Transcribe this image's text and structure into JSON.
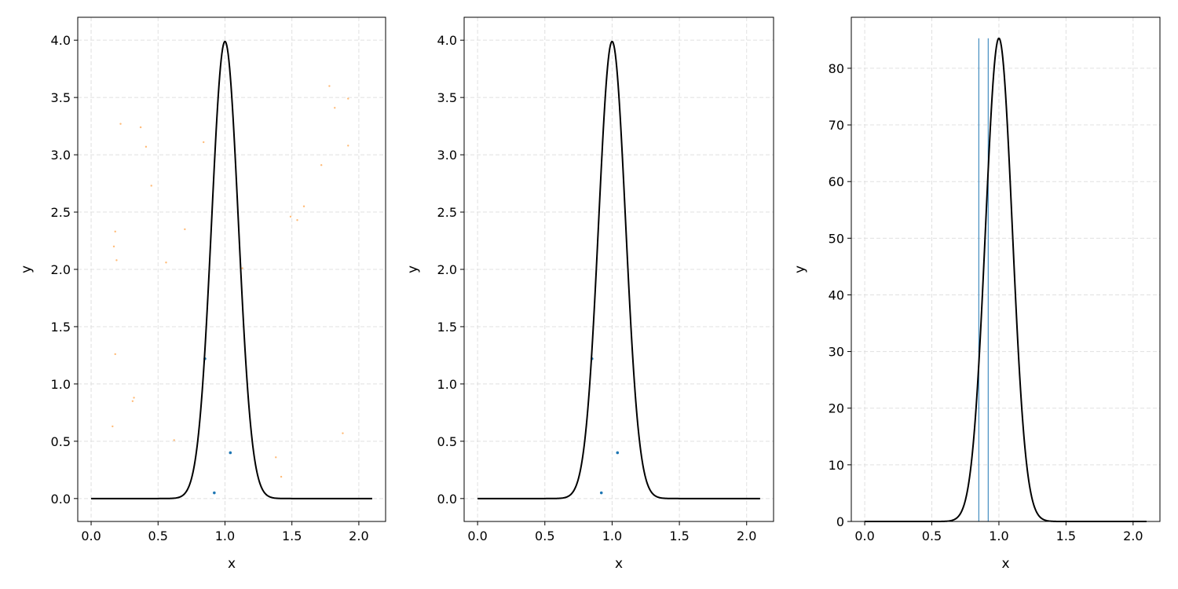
{
  "chart_data": [
    {
      "type": "scatter",
      "xlabel": "x",
      "ylabel": "y",
      "xlim": [
        -0.1,
        2.2
      ],
      "ylim": [
        -0.2,
        4.2
      ],
      "xticks": [
        0.0,
        0.5,
        1.0,
        1.5,
        2.0
      ],
      "xtick_labels": [
        "0.0",
        "0.5",
        "1.0",
        "1.5",
        "2.0"
      ],
      "yticks": [
        0.0,
        0.5,
        1.0,
        1.5,
        2.0,
        2.5,
        3.0,
        3.5,
        4.0
      ],
      "ytick_labels": [
        "0.0",
        "0.5",
        "1.0",
        "1.5",
        "2.0",
        "2.5",
        "3.0",
        "3.5",
        "4.0"
      ],
      "grid": true,
      "curve": {
        "function": "gaussian",
        "mean": 1.0,
        "sigma": 0.1,
        "x_range": [
          0.0,
          2.1
        ],
        "color": "#000000"
      },
      "series": [
        {
          "color": "#1f77b4",
          "points": [
            [
              0.85,
              1.22
            ],
            [
              0.92,
              0.05
            ],
            [
              1.04,
              0.4
            ]
          ]
        },
        {
          "color": "#ffbb78",
          "points": [
            [
              0.22,
              3.27
            ],
            [
              0.37,
              3.24
            ],
            [
              0.41,
              3.07
            ],
            [
              0.45,
              2.73
            ],
            [
              0.84,
              3.11
            ],
            [
              0.18,
              2.33
            ],
            [
              0.17,
              2.2
            ],
            [
              0.19,
              2.08
            ],
            [
              0.56,
              2.06
            ],
            [
              0.7,
              2.35
            ],
            [
              0.18,
              1.26
            ],
            [
              0.32,
              0.88
            ],
            [
              0.31,
              0.85
            ],
            [
              0.16,
              0.63
            ],
            [
              0.62,
              0.51
            ],
            [
              1.13,
              2.01
            ],
            [
              1.38,
              0.36
            ],
            [
              1.42,
              0.19
            ],
            [
              1.49,
              2.46
            ],
            [
              1.54,
              2.43
            ],
            [
              1.59,
              2.55
            ],
            [
              1.72,
              2.91
            ],
            [
              1.78,
              3.6
            ],
            [
              1.82,
              3.41
            ],
            [
              1.92,
              3.49
            ],
            [
              1.92,
              3.08
            ],
            [
              1.88,
              0.57
            ]
          ]
        }
      ]
    },
    {
      "type": "scatter",
      "xlabel": "x",
      "ylabel": "y",
      "xlim": [
        -0.1,
        2.2
      ],
      "ylim": [
        -0.2,
        4.2
      ],
      "xticks": [
        0.0,
        0.5,
        1.0,
        1.5,
        2.0
      ],
      "xtick_labels": [
        "0.0",
        "0.5",
        "1.0",
        "1.5",
        "2.0"
      ],
      "yticks": [
        0.0,
        0.5,
        1.0,
        1.5,
        2.0,
        2.5,
        3.0,
        3.5,
        4.0
      ],
      "ytick_labels": [
        "0.0",
        "0.5",
        "1.0",
        "1.5",
        "2.0",
        "2.5",
        "3.0",
        "3.5",
        "4.0"
      ],
      "grid": true,
      "curve": {
        "function": "gaussian",
        "mean": 1.0,
        "sigma": 0.1,
        "x_range": [
          0.0,
          2.1
        ],
        "color": "#000000"
      },
      "series": [
        {
          "color": "#1f77b4",
          "points": [
            [
              0.85,
              1.22
            ],
            [
              0.92,
              0.05
            ],
            [
              1.04,
              0.4
            ]
          ]
        }
      ]
    },
    {
      "type": "line",
      "xlabel": "x",
      "ylabel": "y",
      "xlim": [
        -0.1,
        2.2
      ],
      "ylim": [
        0,
        89
      ],
      "xticks": [
        0.0,
        0.5,
        1.0,
        1.5,
        2.0
      ],
      "xtick_labels": [
        "0.0",
        "0.5",
        "1.0",
        "1.5",
        "2.0"
      ],
      "yticks": [
        0,
        10,
        20,
        30,
        40,
        50,
        60,
        70,
        80
      ],
      "ytick_labels": [
        "0",
        "10",
        "20",
        "30",
        "40",
        "50",
        "60",
        "70",
        "80"
      ],
      "grid": true,
      "curve": {
        "function": "gaussian",
        "mean": 1.0,
        "sigma": 0.1,
        "x_range": [
          0.0,
          2.1
        ],
        "peak": 85.3,
        "color": "#000000"
      },
      "vlines": {
        "color": "#1f77b4",
        "x": [
          0.85,
          0.92
        ],
        "ymin": 0,
        "ymax": 85.3
      }
    }
  ]
}
